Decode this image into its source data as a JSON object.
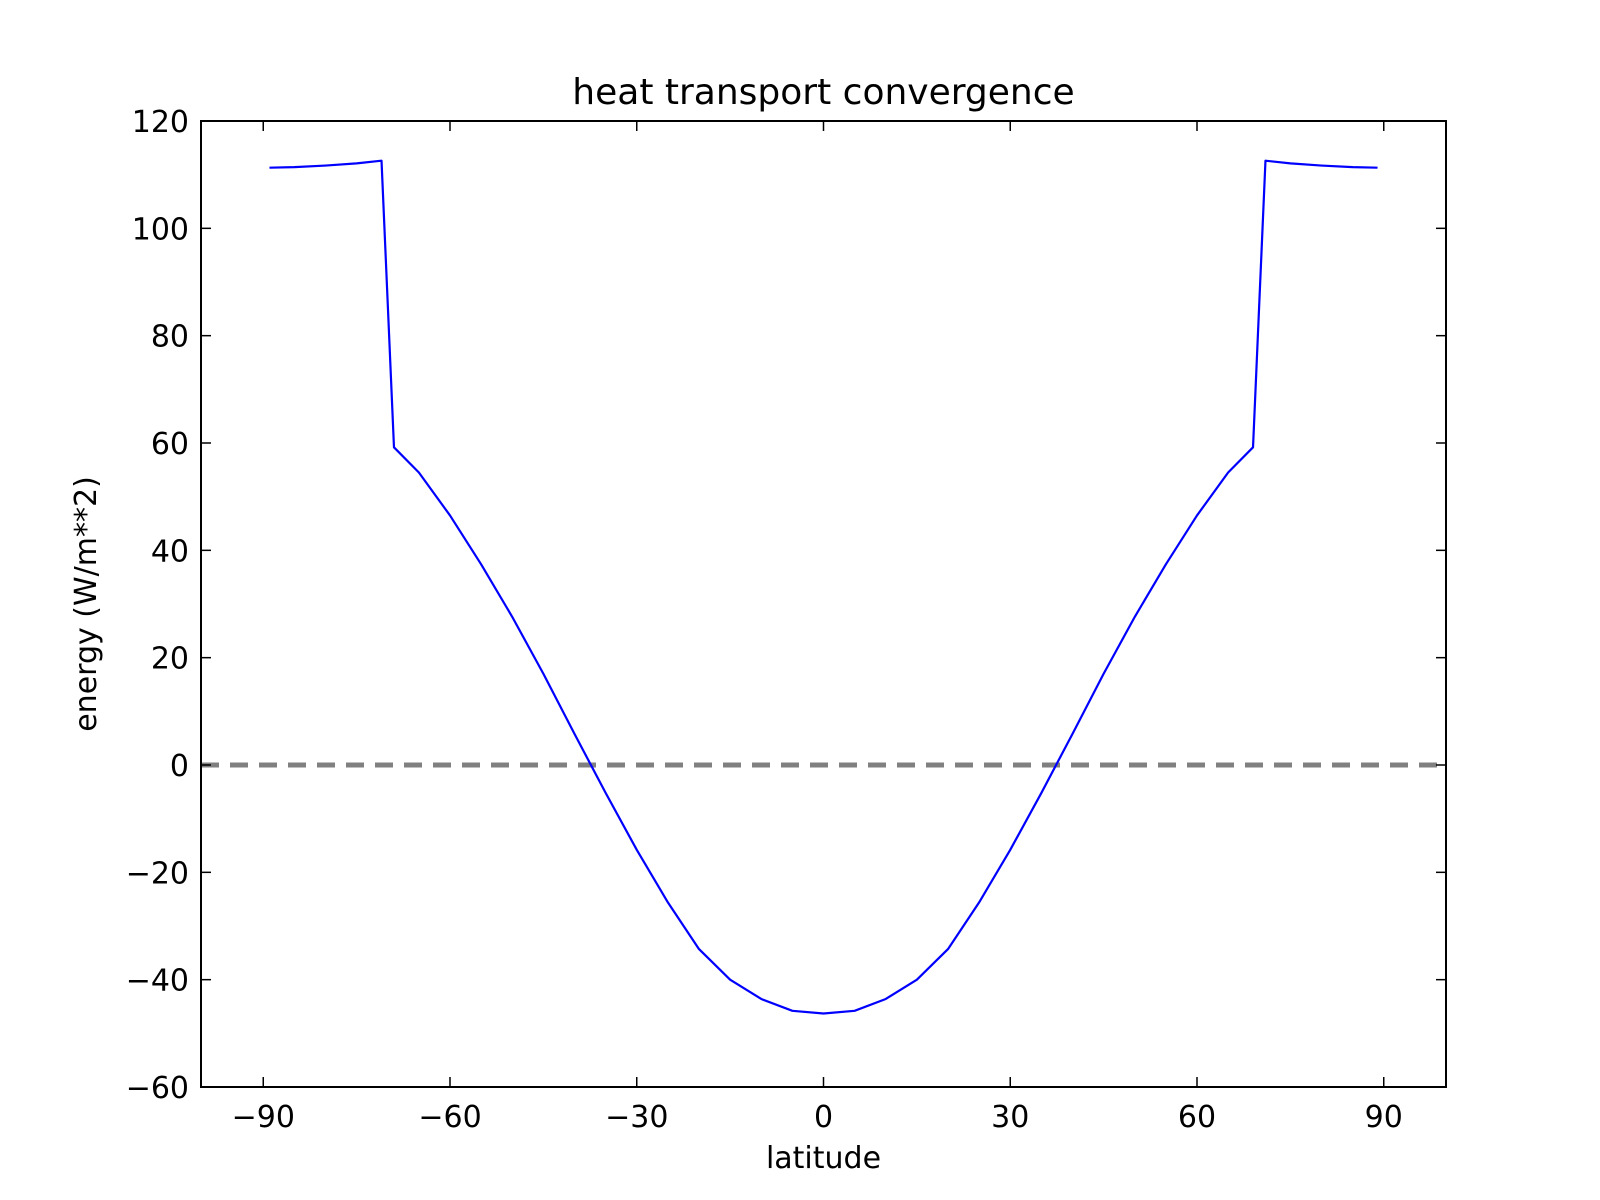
{
  "chart_data": {
    "type": "line",
    "title": "heat transport convergence",
    "xlabel": "latitude",
    "ylabel": "energy (W/m**2)",
    "xlim": [
      -100,
      100
    ],
    "ylim": [
      -60,
      120
    ],
    "xticks": [
      -90,
      -60,
      -30,
      0,
      30,
      60,
      90
    ],
    "yticks": [
      -60,
      -40,
      -20,
      0,
      20,
      40,
      60,
      80,
      100,
      120
    ],
    "grid": false,
    "legend": "none",
    "series": [
      {
        "color": "#0000ff",
        "style": "solid",
        "x": [
          -89,
          -85,
          -80,
          -75,
          -71,
          -69,
          -65,
          -60,
          -55,
          -50,
          -45,
          -40,
          -35,
          -30,
          -25,
          -20,
          -15,
          -10,
          -5,
          0,
          5,
          10,
          15,
          20,
          25,
          30,
          35,
          40,
          45,
          50,
          55,
          60,
          65,
          69,
          71,
          75,
          80,
          85,
          89
        ],
        "y": [
          111.3,
          111.4,
          111.7,
          112.1,
          112.6,
          59.2,
          54.5,
          46.5,
          37.4,
          27.6,
          17.0,
          5.8,
          -5.2,
          -15.8,
          -25.6,
          -34.3,
          -40.0,
          -43.6,
          -45.8,
          -46.3,
          -45.8,
          -43.6,
          -40.0,
          -34.3,
          -25.6,
          -15.8,
          -5.2,
          5.8,
          17.0,
          27.6,
          37.4,
          46.5,
          54.5,
          59.2,
          112.6,
          112.1,
          111.7,
          111.4,
          111.3
        ]
      },
      {
        "color": "#808080",
        "style": "dashed",
        "x": [
          -100,
          100
        ],
        "y": [
          0,
          0
        ]
      }
    ]
  }
}
